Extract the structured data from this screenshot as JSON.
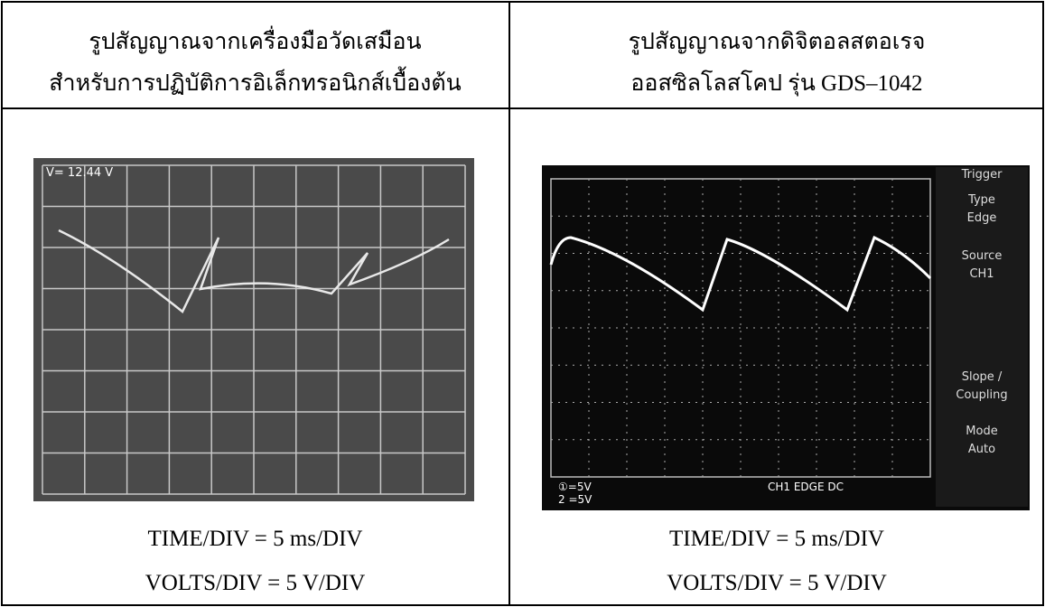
{
  "header": {
    "left": [
      "รูปสัญญาณจากเครื่องมือวัดเสมือน",
      "สำหรับการปฏิบัติการอิเล็กทรอนิกส์เบื้องต้น"
    ],
    "right": [
      "รูปสัญญาณจากดิจิตอลสตอเรจ",
      "ออสซิลโลสโคป รุ่น GDS–1042"
    ]
  },
  "left_panel": {
    "readout": "V= 12.44 V",
    "time_div": "TIME/DIV = 5 ms/DIV",
    "volts_div": "VOLTS/DIV = 5 V/DIV"
  },
  "right_panel": {
    "menu": [
      "Trigger",
      "Type",
      "Edge",
      "Source",
      "CH1",
      "Slope /",
      "Coupling",
      "Mode",
      "Auto"
    ],
    "status": [
      "①=5V",
      "2 =5V",
      "CH1 EDGE DC"
    ],
    "time_div": "TIME/DIV = 5 ms/DIV",
    "volts_div": "VOLTS/DIV = 5 V/DIV"
  }
}
